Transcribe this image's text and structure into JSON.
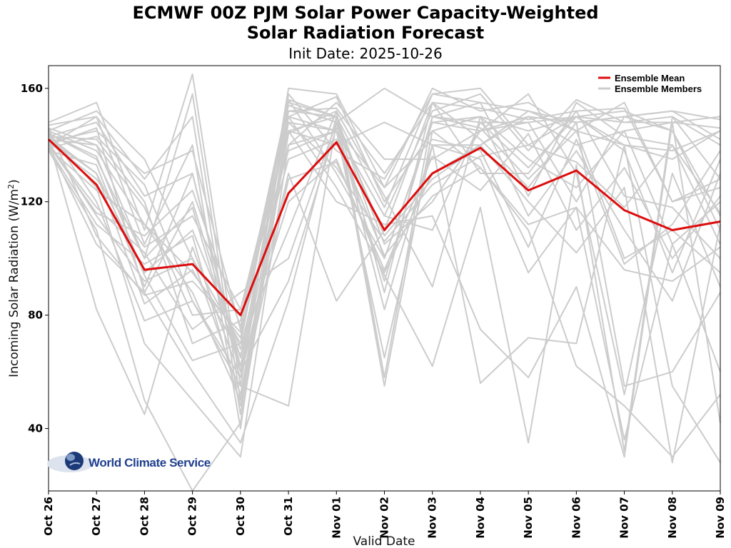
{
  "chart_data": {
    "type": "line",
    "title_line1": "ECMWF 00Z PJM Solar Power Capacity-Weighted",
    "title_line2": "Solar Radiation Forecast",
    "subtitle": "Init Date: 2025-10-26",
    "xlabel": "Valid Date",
    "ylabel_prefix": "Incoming Solar Radiation (W/m",
    "ylabel_sup": "2",
    "ylabel_suffix": ")",
    "categories": [
      "Oct 26",
      "Oct 27",
      "Oct 28",
      "Oct 29",
      "Oct 30",
      "Oct 31",
      "Nov 01",
      "Nov 02",
      "Nov 03",
      "Nov 04",
      "Nov 05",
      "Nov 06",
      "Nov 07",
      "Nov 08",
      "Nov 09"
    ],
    "ylim": [
      18,
      168
    ],
    "yticks": [
      40,
      80,
      120,
      160
    ],
    "grid": false,
    "legend_position": "top-right",
    "colors": {
      "mean": "#dd0d0d",
      "members": "#cccccc"
    },
    "mean": {
      "name": "Ensemble Mean",
      "values": [
        142,
        126,
        96,
        98,
        80,
        123,
        141,
        110,
        130,
        139,
        124,
        131,
        117,
        110,
        113
      ]
    },
    "members_label": "Ensemble Members",
    "members": [
      [
        145,
        152,
        135,
        100,
        70,
        156,
        150,
        118,
        158,
        155,
        152,
        148,
        150,
        152,
        149
      ],
      [
        140,
        150,
        128,
        150,
        45,
        150,
        145,
        92,
        150,
        148,
        148,
        150,
        148,
        148,
        146
      ],
      [
        148,
        155,
        110,
        165,
        55,
        160,
        158,
        125,
        160,
        152,
        155,
        145,
        140,
        135,
        145
      ],
      [
        143,
        148,
        122,
        130,
        60,
        152,
        153,
        130,
        155,
        153,
        149,
        152,
        153,
        120,
        128
      ],
      [
        141,
        145,
        130,
        138,
        75,
        155,
        150,
        100,
        148,
        145,
        150,
        140,
        145,
        105,
        120
      ],
      [
        146,
        140,
        118,
        80,
        82,
        150,
        157,
        120,
        145,
        150,
        145,
        150,
        152,
        145,
        110
      ],
      [
        144,
        135,
        100,
        158,
        50,
        148,
        145,
        115,
        152,
        158,
        138,
        156,
        148,
        150,
        140
      ],
      [
        139,
        143,
        126,
        85,
        58,
        145,
        140,
        148,
        140,
        140,
        152,
        145,
        155,
        120,
        125
      ],
      [
        142,
        130,
        95,
        110,
        68,
        140,
        155,
        135,
        135,
        145,
        148,
        120,
        150,
        152,
        142
      ],
      [
        145,
        138,
        112,
        95,
        72,
        154,
        148,
        160,
        150,
        155,
        122,
        155,
        143,
        140,
        105
      ],
      [
        140,
        146,
        88,
        120,
        65,
        152,
        150,
        105,
        120,
        145,
        158,
        130,
        52,
        130,
        90
      ],
      [
        147,
        150,
        105,
        140,
        40,
        158,
        138,
        128,
        158,
        160,
        140,
        150,
        138,
        95,
        135
      ],
      [
        143,
        142,
        120,
        70,
        78,
        156,
        130,
        100,
        148,
        150,
        135,
        125,
        145,
        148,
        150
      ],
      [
        138,
        133,
        90,
        130,
        62,
        150,
        125,
        95,
        130,
        140,
        150,
        148,
        150,
        145,
        115
      ],
      [
        141,
        115,
        92,
        100,
        52,
        145,
        150,
        88,
        155,
        130,
        130,
        152,
        122,
        118,
        100
      ],
      [
        139,
        112,
        98,
        108,
        48,
        144,
        152,
        58,
        150,
        146,
        128,
        145,
        100,
        110,
        95
      ],
      [
        144,
        125,
        70,
        50,
        30,
        140,
        145,
        65,
        140,
        135,
        95,
        118,
        36,
        105,
        60
      ],
      [
        140,
        105,
        88,
        60,
        35,
        85,
        150,
        55,
        145,
        132,
        110,
        62,
        48,
        30,
        52
      ],
      [
        142,
        82,
        45,
        104,
        58,
        130,
        85,
        110,
        155,
        142,
        125,
        148,
        55,
        60,
        88
      ],
      [
        138,
        110,
        50,
        18,
        42,
        145,
        120,
        112,
        115,
        75,
        58,
        90,
        30,
        148,
        42
      ],
      [
        145,
        120,
        78,
        85,
        55,
        48,
        148,
        82,
        140,
        56,
        72,
        70,
        140,
        55,
        28
      ],
      [
        143,
        130,
        84,
        96,
        66,
        120,
        135,
        94,
        62,
        118,
        35,
        133,
        32,
        150,
        128
      ],
      [
        140,
        118,
        102,
        75,
        88,
        100,
        148,
        108,
        128,
        140,
        120,
        102,
        125,
        28,
        112
      ],
      [
        146,
        108,
        87,
        92,
        74,
        135,
        142,
        101,
        122,
        132,
        112,
        118,
        96,
        92,
        104
      ],
      [
        141,
        128,
        104,
        115,
        82,
        138,
        145,
        115,
        110,
        148,
        132,
        150,
        140,
        138,
        145
      ],
      [
        144,
        136,
        94,
        64,
        70,
        110,
        152,
        122,
        90,
        150,
        115,
        138,
        110,
        85,
        130
      ],
      [
        139,
        124,
        112,
        88,
        50,
        128,
        134,
        96,
        136,
        124,
        144,
        110,
        132,
        100,
        122
      ],
      [
        142,
        140,
        100,
        118,
        60,
        92,
        146,
        125,
        142,
        138,
        104,
        142,
        98,
        112,
        138
      ],
      [
        140,
        116,
        108,
        124,
        76,
        148,
        132,
        106,
        126,
        136,
        140,
        134,
        118,
        140,
        116
      ]
    ]
  },
  "logo": {
    "text": "World Climate Service",
    "icon": "globe-icon"
  }
}
